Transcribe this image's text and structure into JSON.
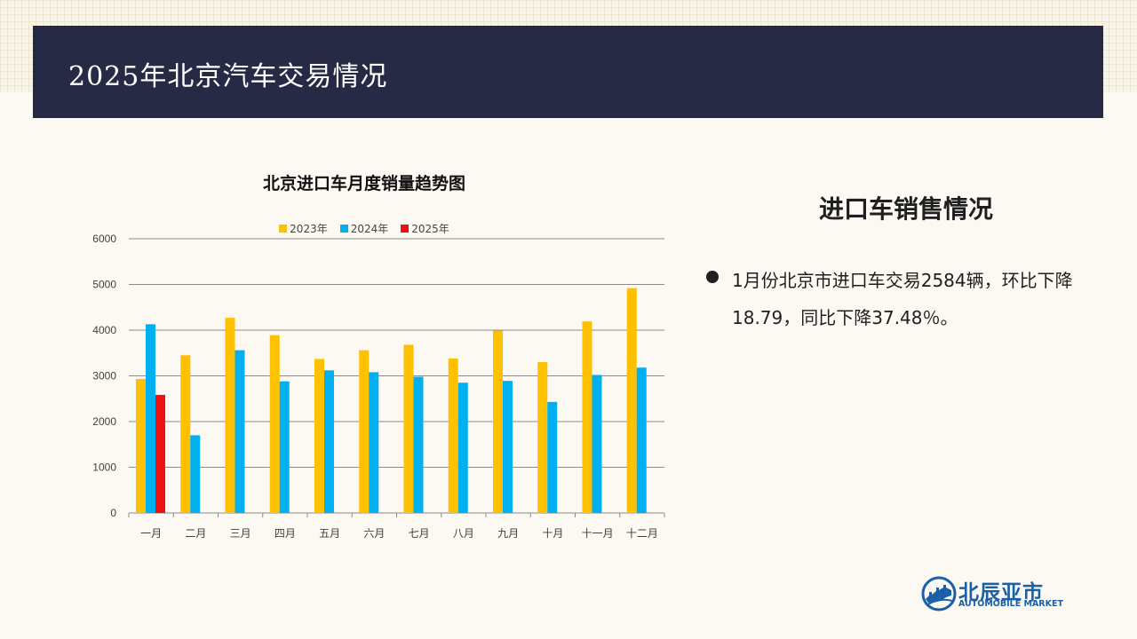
{
  "header": {
    "title": "2025年北京汽车交易情况"
  },
  "chart_data": {
    "type": "bar",
    "title": "北京进口车月度销量趋势图",
    "categories": [
      "一月",
      "二月",
      "三月",
      "四月",
      "五月",
      "六月",
      "七月",
      "八月",
      "九月",
      "十月",
      "十一月",
      "十二月"
    ],
    "series": [
      {
        "name": "2023年",
        "color": "#ffc000",
        "values": [
          2930,
          3450,
          4270,
          3890,
          3370,
          3560,
          3680,
          3380,
          3990,
          3300,
          4190,
          4920
        ]
      },
      {
        "name": "2024年",
        "color": "#00b0f0",
        "values": [
          4130,
          1700,
          3560,
          2880,
          3120,
          3080,
          2980,
          2850,
          2890,
          2430,
          3020,
          3180
        ]
      },
      {
        "name": "2025年",
        "color": "#ee1111",
        "values": [
          2584,
          null,
          null,
          null,
          null,
          null,
          null,
          null,
          null,
          null,
          null,
          null
        ]
      }
    ],
    "ylim": [
      0,
      6000
    ],
    "yticks": [
      0,
      1000,
      2000,
      3000,
      4000,
      5000,
      6000
    ],
    "grid": true,
    "legend": "top-center",
    "xlabel": "",
    "ylabel": ""
  },
  "side": {
    "title": "进口车销售情况",
    "bullet": "1月份北京市进口车交易2584辆，环比下降18.79，同比下降37.48％。"
  },
  "logo": {
    "name": "北辰亚市",
    "sub": "AUTOMOBILE MARKET",
    "color": "#1b5fa6",
    "icon": "great-wall-globe-icon"
  }
}
